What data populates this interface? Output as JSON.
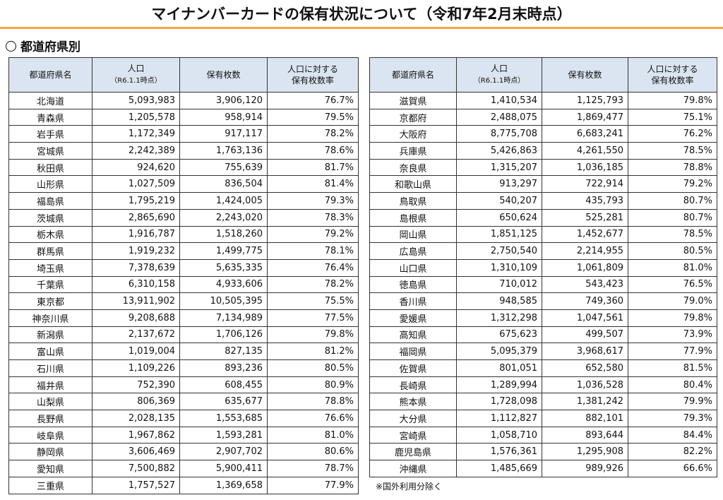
{
  "title": "マイナンバーカードの保有状況について（令和7年2月末時点）",
  "section_heading": "都道府県別",
  "headers": {
    "prefecture": "都道府県名",
    "population": "人口",
    "population_note": "（R6.1.1時点）",
    "cards_held": "保有枚数",
    "rate_line1": "人口に対する",
    "rate_line2": "保有枚数率"
  },
  "left_rows": [
    {
      "name": "北海道",
      "population": "5,093,983",
      "cards": "3,906,120",
      "rate": "76.7%"
    },
    {
      "name": "青森県",
      "population": "1,205,578",
      "cards": "958,914",
      "rate": "79.5%"
    },
    {
      "name": "岩手県",
      "population": "1,172,349",
      "cards": "917,117",
      "rate": "78.2%"
    },
    {
      "name": "宮城県",
      "population": "2,242,389",
      "cards": "1,763,136",
      "rate": "78.6%"
    },
    {
      "name": "秋田県",
      "population": "924,620",
      "cards": "755,639",
      "rate": "81.7%"
    },
    {
      "name": "山形県",
      "population": "1,027,509",
      "cards": "836,504",
      "rate": "81.4%"
    },
    {
      "name": "福島県",
      "population": "1,795,219",
      "cards": "1,424,005",
      "rate": "79.3%"
    },
    {
      "name": "茨城県",
      "population": "2,865,690",
      "cards": "2,243,020",
      "rate": "78.3%"
    },
    {
      "name": "栃木県",
      "population": "1,916,787",
      "cards": "1,518,260",
      "rate": "79.2%"
    },
    {
      "name": "群馬県",
      "population": "1,919,232",
      "cards": "1,499,775",
      "rate": "78.1%"
    },
    {
      "name": "埼玉県",
      "population": "7,378,639",
      "cards": "5,635,335",
      "rate": "76.4%"
    },
    {
      "name": "千葉県",
      "population": "6,310,158",
      "cards": "4,933,606",
      "rate": "78.2%"
    },
    {
      "name": "東京都",
      "population": "13,911,902",
      "cards": "10,505,395",
      "rate": "75.5%"
    },
    {
      "name": "神奈川県",
      "population": "9,208,688",
      "cards": "7,134,989",
      "rate": "77.5%"
    },
    {
      "name": "新潟県",
      "population": "2,137,672",
      "cards": "1,706,126",
      "rate": "79.8%"
    },
    {
      "name": "富山県",
      "population": "1,019,004",
      "cards": "827,135",
      "rate": "81.2%"
    },
    {
      "name": "石川県",
      "population": "1,109,226",
      "cards": "893,236",
      "rate": "80.5%"
    },
    {
      "name": "福井県",
      "population": "752,390",
      "cards": "608,455",
      "rate": "80.9%"
    },
    {
      "name": "山梨県",
      "population": "806,369",
      "cards": "635,677",
      "rate": "78.8%"
    },
    {
      "name": "長野県",
      "population": "2,028,135",
      "cards": "1,553,685",
      "rate": "76.6%"
    },
    {
      "name": "岐阜県",
      "population": "1,967,862",
      "cards": "1,593,281",
      "rate": "81.0%"
    },
    {
      "name": "静岡県",
      "population": "3,606,469",
      "cards": "2,907,702",
      "rate": "80.6%"
    },
    {
      "name": "愛知県",
      "population": "7,500,882",
      "cards": "5,900,411",
      "rate": "78.7%"
    },
    {
      "name": "三重県",
      "population": "1,757,527",
      "cards": "1,369,658",
      "rate": "77.9%"
    }
  ],
  "right_rows": [
    {
      "name": "滋賀県",
      "population": "1,410,534",
      "cards": "1,125,793",
      "rate": "79.8%"
    },
    {
      "name": "京都府",
      "population": "2,488,075",
      "cards": "1,869,477",
      "rate": "75.1%"
    },
    {
      "name": "大阪府",
      "population": "8,775,708",
      "cards": "6,683,241",
      "rate": "76.2%"
    },
    {
      "name": "兵庫県",
      "population": "5,426,863",
      "cards": "4,261,550",
      "rate": "78.5%"
    },
    {
      "name": "奈良県",
      "population": "1,315,207",
      "cards": "1,036,185",
      "rate": "78.8%"
    },
    {
      "name": "和歌山県",
      "population": "913,297",
      "cards": "722,914",
      "rate": "79.2%"
    },
    {
      "name": "鳥取県",
      "population": "540,207",
      "cards": "435,793",
      "rate": "80.7%"
    },
    {
      "name": "島根県",
      "population": "650,624",
      "cards": "525,281",
      "rate": "80.7%"
    },
    {
      "name": "岡山県",
      "population": "1,851,125",
      "cards": "1,452,677",
      "rate": "78.5%"
    },
    {
      "name": "広島県",
      "population": "2,750,540",
      "cards": "2,214,955",
      "rate": "80.5%"
    },
    {
      "name": "山口県",
      "population": "1,310,109",
      "cards": "1,061,809",
      "rate": "81.0%"
    },
    {
      "name": "徳島県",
      "population": "710,012",
      "cards": "543,423",
      "rate": "76.5%"
    },
    {
      "name": "香川県",
      "population": "948,585",
      "cards": "749,360",
      "rate": "79.0%"
    },
    {
      "name": "愛媛県",
      "population": "1,312,298",
      "cards": "1,047,561",
      "rate": "79.8%"
    },
    {
      "name": "高知県",
      "population": "675,623",
      "cards": "499,507",
      "rate": "73.9%"
    },
    {
      "name": "福岡県",
      "population": "5,095,379",
      "cards": "3,968,617",
      "rate": "77.9%"
    },
    {
      "name": "佐賀県",
      "population": "801,051",
      "cards": "652,580",
      "rate": "81.5%"
    },
    {
      "name": "長崎県",
      "population": "1,289,994",
      "cards": "1,036,528",
      "rate": "80.4%"
    },
    {
      "name": "熊本県",
      "population": "1,728,098",
      "cards": "1,381,242",
      "rate": "79.9%"
    },
    {
      "name": "大分県",
      "population": "1,112,827",
      "cards": "882,101",
      "rate": "79.3%"
    },
    {
      "name": "宮崎県",
      "population": "1,058,710",
      "cards": "893,644",
      "rate": "84.4%"
    },
    {
      "name": "鹿児島県",
      "population": "1,576,361",
      "cards": "1,295,908",
      "rate": "82.2%"
    },
    {
      "name": "沖縄県",
      "population": "1,485,669",
      "cards": "989,926",
      "rate": "66.6%"
    }
  ],
  "footnote": "※国外利用分除く",
  "colors": {
    "header_bg": "#dbe5f1",
    "accent_rule": "#f2a83b"
  }
}
